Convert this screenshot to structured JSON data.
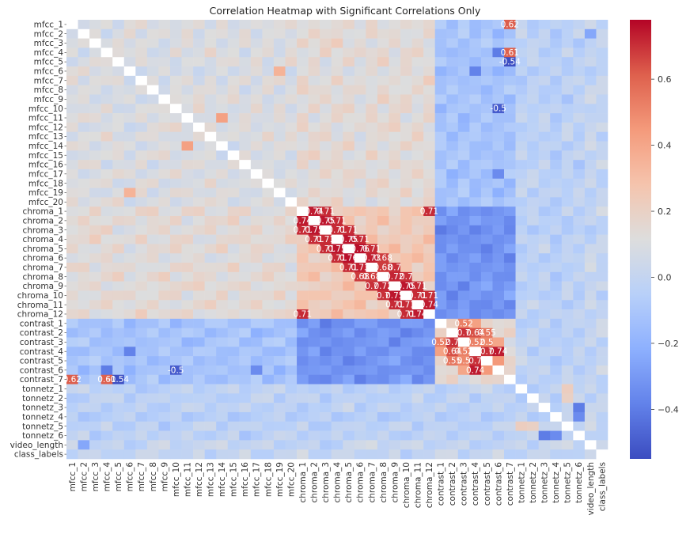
{
  "chart_data": {
    "type": "heatmap",
    "title": "Correlation Heatmap with Significant Correlations Only",
    "labels": [
      "mfcc_1",
      "mfcc_2",
      "mfcc_3",
      "mfcc_4",
      "mfcc_5",
      "mfcc_6",
      "mfcc_7",
      "mfcc_8",
      "mfcc_9",
      "mfcc_10",
      "mfcc_11",
      "mfcc_12",
      "mfcc_13",
      "mfcc_14",
      "mfcc_15",
      "mfcc_16",
      "mfcc_17",
      "mfcc_18",
      "mfcc_19",
      "mfcc_20",
      "chroma_1",
      "chroma_2",
      "chroma_3",
      "chroma_4",
      "chroma_5",
      "chroma_6",
      "chroma_7",
      "chroma_8",
      "chroma_9",
      "chroma_10",
      "chroma_11",
      "chroma_12",
      "contrast_1",
      "contrast_2",
      "contrast_3",
      "contrast_4",
      "contrast_5",
      "contrast_6",
      "contrast_7",
      "tonnetz_1",
      "tonnetz_2",
      "tonnetz_3",
      "tonnetz_4",
      "tonnetz_5",
      "tonnetz_6",
      "video_length",
      "class_labels"
    ],
    "colormap": "coolwarm",
    "vmin": -0.55,
    "vmax": 0.78,
    "colorbar_ticks": [
      0.6,
      0.4,
      0.2,
      0.0,
      -0.2,
      -0.4
    ],
    "colorbar_tick_labels": [
      "0.6",
      "0.4",
      "0.2",
      "0.0",
      "−0.2",
      "−0.4"
    ],
    "diagonal": "masked",
    "overrides": [
      [
        "mfcc_1",
        "contrast_7",
        0.62,
        "0.62"
      ],
      [
        "mfcc_4",
        "contrast_7",
        0.61,
        "0.61"
      ],
      [
        "mfcc_5",
        "contrast_7",
        -0.54,
        "-0.54"
      ],
      [
        "mfcc_10",
        "contrast_6",
        -0.5,
        "-0.5"
      ],
      [
        "mfcc_4",
        "contrast_6",
        -0.4,
        ""
      ],
      [
        "mfcc_6",
        "contrast_4",
        -0.38,
        ""
      ],
      [
        "mfcc_17",
        "contrast_6",
        -0.35,
        ""
      ],
      [
        "mfcc_11",
        "mfcc_14",
        0.42,
        ""
      ],
      [
        "mfcc_6",
        "mfcc_19",
        0.35,
        ""
      ],
      [
        "chroma_1",
        "chroma_2",
        0.74,
        "0.74"
      ],
      [
        "chroma_2",
        "chroma_3",
        0.75,
        "0.75"
      ],
      [
        "chroma_3",
        "chroma_4",
        0.71,
        "0.71"
      ],
      [
        "chroma_4",
        "chroma_5",
        0.75,
        "0.75"
      ],
      [
        "chroma_5",
        "chroma_6",
        0.76,
        "0.76"
      ],
      [
        "chroma_6",
        "chroma_7",
        0.73,
        "0.73"
      ],
      [
        "chroma_7",
        "chroma_8",
        0.68,
        "0.68"
      ],
      [
        "chroma_8",
        "chroma_9",
        0.72,
        "0.72"
      ],
      [
        "chroma_9",
        "chroma_10",
        0.75,
        "0.75"
      ],
      [
        "chroma_10",
        "chroma_11",
        0.71,
        "0.71"
      ],
      [
        "chroma_11",
        "chroma_12",
        0.74,
        "0.74"
      ],
      [
        "chroma_1",
        "chroma_3",
        0.71,
        "0.71"
      ],
      [
        "chroma_2",
        "chroma_4",
        0.71,
        "0.71"
      ],
      [
        "chroma_3",
        "chroma_5",
        0.71,
        "0.71"
      ],
      [
        "chroma_4",
        "chroma_6",
        0.71,
        "0.71"
      ],
      [
        "chroma_5",
        "chroma_7",
        0.71,
        "0.71"
      ],
      [
        "chroma_6",
        "chroma_8",
        0.68,
        "0.68"
      ],
      [
        "chroma_7",
        "chroma_9",
        0.7,
        "0.7"
      ],
      [
        "chroma_8",
        "chroma_10",
        0.7,
        "0.7"
      ],
      [
        "chroma_9",
        "chroma_11",
        0.71,
        "0.71"
      ],
      [
        "chroma_10",
        "chroma_12",
        0.71,
        "0.71"
      ],
      [
        "chroma_1",
        "chroma_12",
        0.71,
        "0.71"
      ],
      [
        "contrast_1",
        "contrast_3",
        0.52,
        "0.52"
      ],
      [
        "contrast_2",
        "contrast_3",
        0.7,
        "0.7"
      ],
      [
        "contrast_2",
        "contrast_4",
        0.64,
        "0.64"
      ],
      [
        "contrast_3",
        "contrast_4",
        0.52,
        "0.52"
      ],
      [
        "contrast_2",
        "contrast_5",
        0.55,
        "0.55"
      ],
      [
        "contrast_3",
        "contrast_5",
        0.5,
        "0.5"
      ],
      [
        "contrast_4",
        "contrast_5",
        0.7,
        "0.7"
      ],
      [
        "contrast_4",
        "contrast_6",
        0.74,
        "0.74"
      ],
      [
        "contrast_5",
        "contrast_6",
        0.45,
        ""
      ],
      [
        "contrast_1",
        "contrast_4",
        0.42,
        ""
      ],
      [
        "contrast_3",
        "contrast_6",
        0.4,
        ""
      ],
      [
        "tonnetz_2",
        "tonnetz_5",
        0.2,
        ""
      ],
      [
        "tonnetz_1",
        "tonnetz_5",
        0.22,
        ""
      ],
      [
        "tonnetz_3",
        "tonnetz_6",
        -0.4,
        ""
      ],
      [
        "tonnetz_4",
        "tonnetz_6",
        -0.35,
        ""
      ],
      [
        "mfcc_2",
        "video_length",
        -0.25,
        ""
      ]
    ]
  }
}
